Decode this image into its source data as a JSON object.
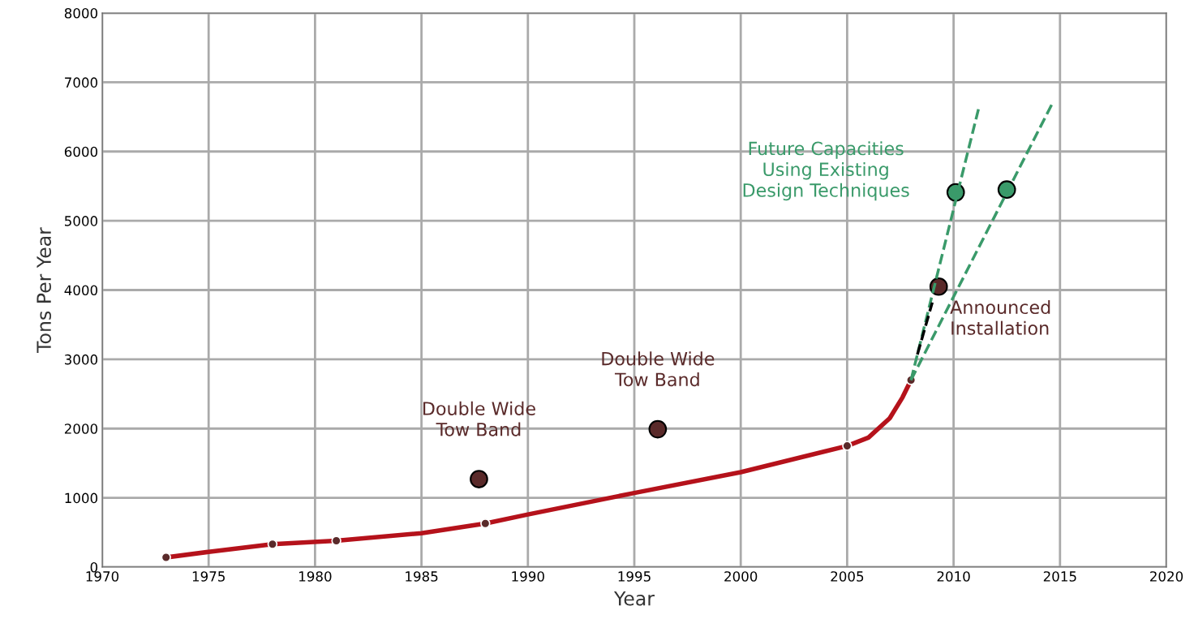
{
  "chart_data": {
    "type": "line",
    "xlabel": "Year",
    "ylabel": "Tons Per Year",
    "xlim": [
      1970,
      2020
    ],
    "xticks": [
      1970,
      1975,
      1980,
      1985,
      1990,
      1995,
      2000,
      2005,
      2010,
      2015,
      2020
    ],
    "ylim": [
      0,
      8000
    ],
    "yticks": [
      0,
      1000,
      2000,
      3000,
      4000,
      5000,
      6000,
      7000,
      8000
    ],
    "grid": true,
    "legend": false,
    "series": [
      {
        "color": "#b5121b",
        "line_style": "solid",
        "marker": "none",
        "x": [
          1973,
          1975,
          1978,
          1981,
          1985,
          1988,
          1990,
          1995,
          2000,
          2005,
          2006,
          2007,
          2007.6,
          2008
        ],
        "values": [
          140,
          220,
          330,
          380,
          490,
          630,
          760,
          1070,
          1370,
          1750,
          1870,
          2150,
          2450,
          2700
        ]
      },
      {
        "type": "scatter",
        "color": "#5a2a2a",
        "marker": "circle",
        "x": [
          1973,
          1978,
          1981,
          1988,
          2005,
          2008
        ],
        "values": [
          140,
          330,
          380,
          630,
          1750,
          2700
        ]
      },
      {
        "type": "bubble",
        "color": "#5a2a2a",
        "marker": "circle",
        "x": [
          1987.7,
          1996.1,
          2009.3
        ],
        "values": [
          1270,
          1990,
          4050
        ],
        "sizes": [
          1,
          1,
          1
        ]
      },
      {
        "type": "bubble",
        "color": "#3a9a6a",
        "marker": "circle",
        "x": [
          2010.1,
          2012.5
        ],
        "values": [
          5410,
          5450
        ],
        "sizes": [
          1,
          1
        ]
      },
      {
        "color": "#3a9a6a",
        "line_style": "dashed",
        "marker": "none",
        "x": [
          2008,
          2011.2
        ],
        "values": [
          2700,
          6650
        ]
      },
      {
        "color": "#3a9a6a",
        "line_style": "dashed",
        "marker": "none",
        "x": [
          2008,
          2014.7
        ],
        "values": [
          2700,
          6730
        ]
      },
      {
        "color": "#000000",
        "line_style": "dashed",
        "marker": "none",
        "x": [
          2008.3,
          2009
        ],
        "values": [
          3070,
          3820
        ]
      }
    ],
    "annotations": [
      {
        "text": "Double Wide\nTow Band",
        "x": 1987.7,
        "y": 1270
      },
      {
        "text": "Double Wide\nTow Band",
        "x": 1996.1,
        "y": 1990
      },
      {
        "text": "Announced\nInstallation",
        "x": 2009.3,
        "y": 4050
      },
      "Future Capacities\nUsing Existing\nDesign Techniques"
    ]
  }
}
